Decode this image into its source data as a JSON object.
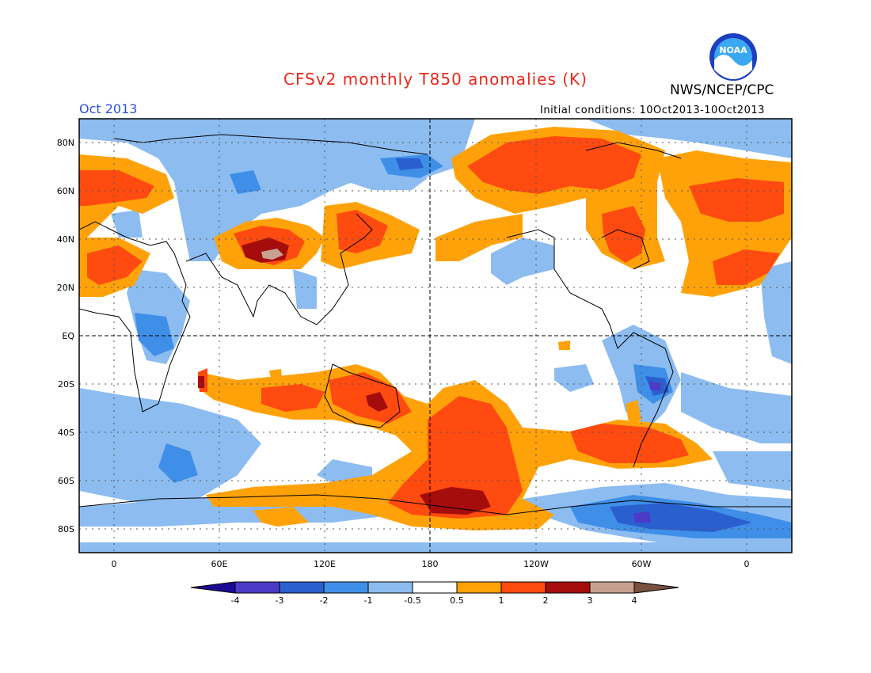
{
  "header": {
    "title": "CFSv2 monthly T850 anomalies (K)",
    "agency": "NWS/NCEP/CPC",
    "logo_text": "NOAA",
    "month": "Oct 2013",
    "initial_conditions": "Initial conditions: 10Oct2013-10Oct2013"
  },
  "axes": {
    "lat_labels": [
      "80N",
      "60N",
      "40N",
      "20N",
      "EQ",
      "20S",
      "40S",
      "60S",
      "80S"
    ],
    "lon_labels": [
      "0",
      "60E",
      "120E",
      "180",
      "120W",
      "60W",
      "0"
    ]
  },
  "colorbar": {
    "tick_labels": [
      "-4",
      "-3",
      "-2",
      "-1",
      "-0.5",
      "0.5",
      "1",
      "2",
      "3",
      "4"
    ],
    "colors": [
      "#1a0a96",
      "#4a3cc8",
      "#2a5fd0",
      "#3f8fe8",
      "#8cbcf0",
      "#ffffff",
      "#ffa20a",
      "#ff4a10",
      "#a50d0d",
      "#c8a090",
      "#7a5040"
    ]
  },
  "map_style": {
    "ocean_land_base": "#ffffff",
    "grid_color": "#555555",
    "coast_color": "#000000"
  }
}
